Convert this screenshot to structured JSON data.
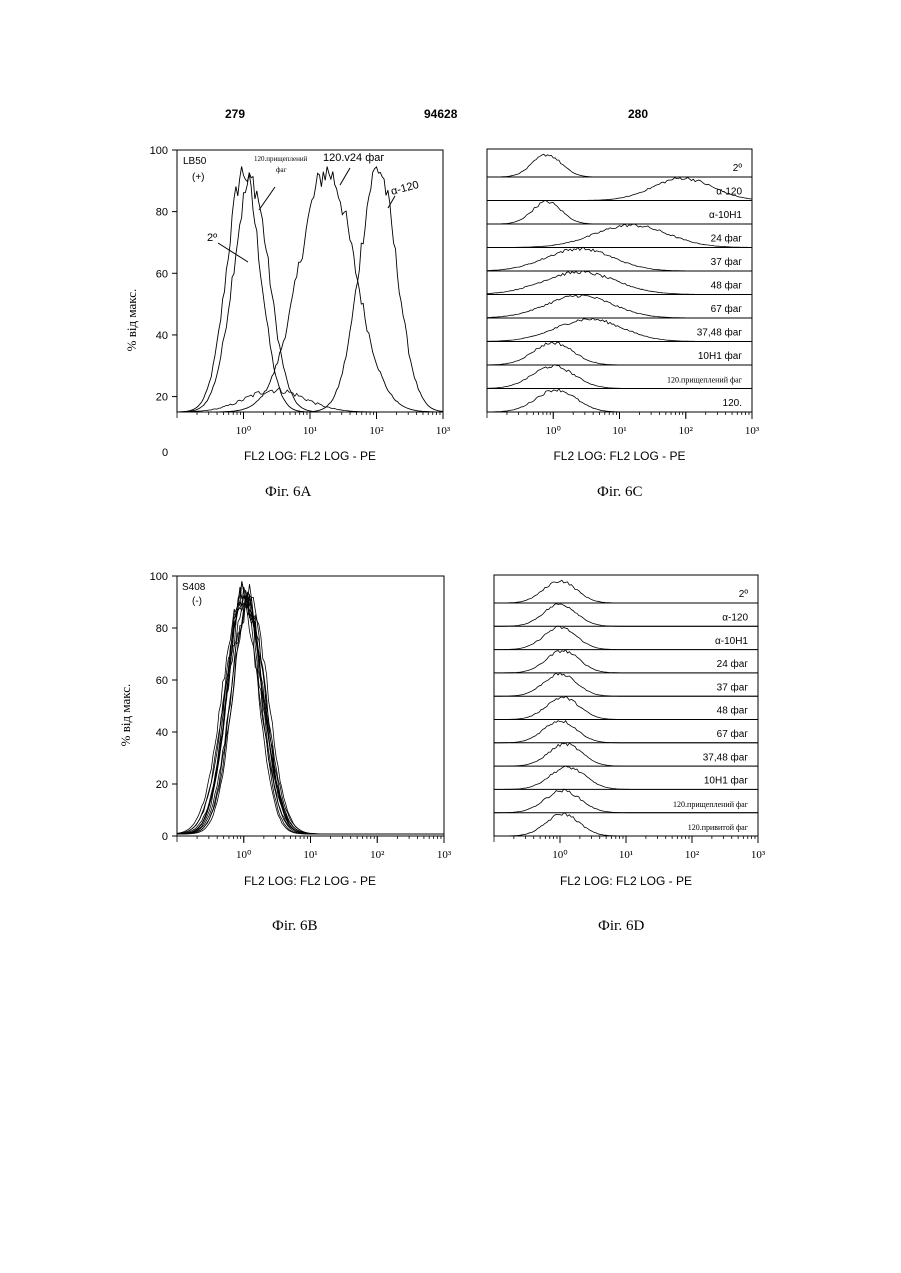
{
  "header": {
    "left_page": "279",
    "center_number": "94628",
    "right_page": "280"
  },
  "figures": {
    "a": {
      "caption": "Фіг. 6А",
      "sample_label": "LB50",
      "sample_sign": "(+)"
    },
    "b": {
      "caption": "Фіг. 6В",
      "sample_label": "S408",
      "sample_sign": "(-)"
    },
    "c": {
      "caption": "Фіг. 6С"
    },
    "d": {
      "caption": "Фіг. 6D"
    }
  },
  "annotations_a": {
    "zero_label": "0",
    "prischep": "120.прищеплений",
    "prischep2": "фаг",
    "v24": "120.v24 фаг",
    "a120": "α-120",
    "secondary": "2º"
  },
  "chart_data": [
    {
      "id": "fig6a",
      "type": "line",
      "title": "",
      "xlabel": "FL2 LOG: FL2 LOG - PE",
      "ylabel": "% від макс.",
      "x_scale": "log",
      "xlim": [
        0.1,
        1000
      ],
      "ylim": [
        15,
        100
      ],
      "y_ticks": [
        "100",
        "80",
        "60",
        "40",
        "20"
      ],
      "x_ticks": [
        "10⁰",
        "10¹",
        "10²",
        "10³"
      ],
      "series": [
        {
          "name": "2º",
          "peak": 1.0,
          "sigma": 0.25,
          "height": 93
        },
        {
          "name": "120.прищеплений фаг",
          "peak": 1.3,
          "sigma": 0.27,
          "height": 90
        },
        {
          "name": "120.v24 фаг",
          "peak": 18,
          "sigma": 0.42,
          "height": 93
        },
        {
          "name": "α-120",
          "peak": 105,
          "sigma": 0.28,
          "height": 94
        }
      ]
    },
    {
      "id": "fig6b",
      "type": "line",
      "title": "",
      "xlabel": "FL2 LOG: FL2 LOG - PE",
      "ylabel": "% від макс.",
      "x_scale": "log",
      "xlim": [
        0.1,
        1000
      ],
      "ylim": [
        0,
        100
      ],
      "y_ticks": [
        "100",
        "80",
        "60",
        "40",
        "20",
        "0"
      ],
      "x_ticks": [
        "10⁰",
        "10¹",
        "10²",
        "10³"
      ],
      "series_note": "12 overlapping histograms, all peaking near 10⁰ at ~90-94%",
      "peaks": [
        1.0,
        1.05,
        1.1,
        0.95,
        1.15,
        1.0,
        1.2,
        1.05,
        0.9,
        1.1,
        1.25,
        1.0
      ],
      "heights": [
        94,
        92,
        90,
        93,
        88,
        91,
        89,
        94,
        90,
        87,
        92,
        93
      ]
    },
    {
      "id": "fig6c",
      "type": "line",
      "title": "",
      "xlabel": "FL2 LOG: FL2 LOG - PE",
      "x_scale": "log",
      "xlim": [
        0.1,
        1000
      ],
      "x_ticks": [
        "10⁰",
        "10¹",
        "10²",
        "10³"
      ],
      "tracks": [
        {
          "name": "2º",
          "peak": 0.8,
          "sigma": 0.22
        },
        {
          "name": "α-120",
          "peak": 90,
          "sigma": 0.45
        },
        {
          "name": "α-10H1",
          "peak": 0.8,
          "sigma": 0.22
        },
        {
          "name": "24 фаг",
          "peak": 15,
          "sigma": 0.55
        },
        {
          "name": "37 фаг",
          "peak": 2.5,
          "sigma": 0.5
        },
        {
          "name": "48 фаг",
          "peak": 2.5,
          "sigma": 0.55
        },
        {
          "name": "67 фаг",
          "peak": 2.5,
          "sigma": 0.5
        },
        {
          "name": "37,48 фаг",
          "peak": 3.5,
          "sigma": 0.5
        },
        {
          "name": "10H1 фаг",
          "peak": 1.0,
          "sigma": 0.3
        },
        {
          "name": "120.прищеплений фаг",
          "peak": 1.0,
          "sigma": 0.32
        },
        {
          "name": "120.",
          "peak": 1.1,
          "sigma": 0.3
        }
      ]
    },
    {
      "id": "fig6d",
      "type": "line",
      "title": "",
      "xlabel": "FL2 LOG: FL2 LOG - PE",
      "x_scale": "log",
      "xlim": [
        0.1,
        1000
      ],
      "x_ticks": [
        "10⁰",
        "10¹",
        "10²",
        "10³"
      ],
      "tracks": [
        {
          "name": "2º",
          "peak": 1.0,
          "sigma": 0.25
        },
        {
          "name": "α-120",
          "peak": 1.0,
          "sigma": 0.25
        },
        {
          "name": "α-10H1",
          "peak": 1.0,
          "sigma": 0.25
        },
        {
          "name": "24 фаг",
          "peak": 1.1,
          "sigma": 0.25
        },
        {
          "name": "37 фаг",
          "peak": 1.0,
          "sigma": 0.25
        },
        {
          "name": "48 фаг",
          "peak": 1.1,
          "sigma": 0.25
        },
        {
          "name": "67 фаг",
          "peak": 1.0,
          "sigma": 0.25
        },
        {
          "name": "37,48 фаг",
          "peak": 1.2,
          "sigma": 0.25
        },
        {
          "name": "10H1 фаг",
          "peak": 1.3,
          "sigma": 0.27
        },
        {
          "name": "120.прищеплений фаг",
          "peak": 1.1,
          "sigma": 0.27
        },
        {
          "name": "120.привитой фаг",
          "peak": 1.1,
          "sigma": 0.25
        }
      ]
    }
  ]
}
